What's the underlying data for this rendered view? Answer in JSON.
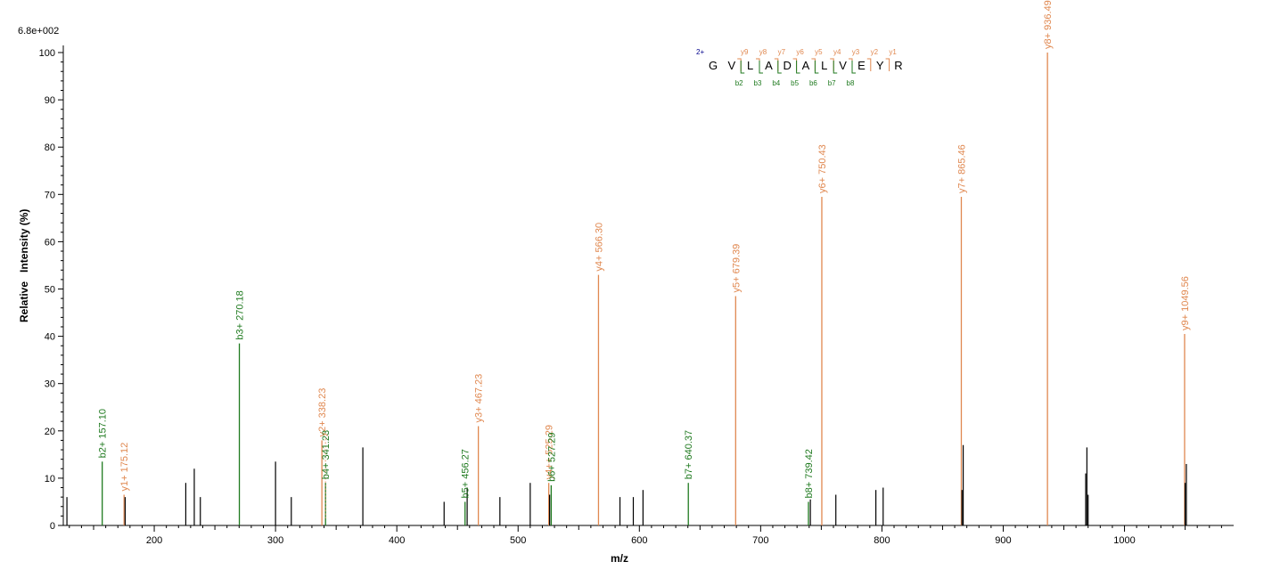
{
  "chart_data": {
    "type": "bar",
    "title": "",
    "scale_label": "6.8e+002",
    "xlabel": "m/z",
    "ylabel_parts": [
      "Relative",
      "Intensity (%)"
    ],
    "xlim": [
      125,
      1090
    ],
    "ylim": [
      0,
      100
    ],
    "x_ticks": [
      200,
      300,
      400,
      500,
      600,
      700,
      800,
      900,
      1000
    ],
    "y_ticks": [
      0,
      10,
      20,
      30,
      40,
      50,
      60,
      70,
      80,
      90,
      100
    ],
    "colors": {
      "b_ion": "#1f7a1f",
      "y_ion": "#e08850",
      "unlabeled": "#000000",
      "charge": "#00008b"
    },
    "peaks": [
      {
        "mz": 128,
        "intensity": 6
      },
      {
        "mz": 157.1,
        "intensity": 13.5,
        "ion": "b",
        "label": "b2+ 157.10"
      },
      {
        "mz": 175.12,
        "intensity": 6.5,
        "ion": "y",
        "label": "y1+ 175.12"
      },
      {
        "mz": 176,
        "intensity": 6
      },
      {
        "mz": 226,
        "intensity": 9
      },
      {
        "mz": 233,
        "intensity": 12
      },
      {
        "mz": 238,
        "intensity": 6
      },
      {
        "mz": 270.18,
        "intensity": 38.5,
        "ion": "b",
        "label": "b3+ 270.18"
      },
      {
        "mz": 300,
        "intensity": 13.5
      },
      {
        "mz": 313,
        "intensity": 6
      },
      {
        "mz": 338.23,
        "intensity": 18,
        "ion": "y",
        "label": "y2+ 338.23"
      },
      {
        "mz": 341.23,
        "intensity": 9,
        "ion": "b",
        "label": "b4+ 341.23"
      },
      {
        "mz": 372,
        "intensity": 16.5
      },
      {
        "mz": 439,
        "intensity": 5
      },
      {
        "mz": 456.27,
        "intensity": 5,
        "ion": "b",
        "label": "b5+ 456.27"
      },
      {
        "mz": 458,
        "intensity": 8
      },
      {
        "mz": 467.23,
        "intensity": 21,
        "ion": "y",
        "label": "y3+ 467.23"
      },
      {
        "mz": 485,
        "intensity": 6
      },
      {
        "mz": 510,
        "intensity": 9
      },
      {
        "mz": 525.29,
        "intensity": 9,
        "ion": "y",
        "label": "y4++ 525.29"
      },
      {
        "mz": 526,
        "intensity": 6.5
      },
      {
        "mz": 527.29,
        "intensity": 8.5,
        "ion": "b",
        "label": "b6+ 527.29"
      },
      {
        "mz": 566.3,
        "intensity": 53,
        "ion": "y",
        "label": "y4+ 566.30"
      },
      {
        "mz": 584,
        "intensity": 6
      },
      {
        "mz": 595,
        "intensity": 6
      },
      {
        "mz": 603,
        "intensity": 7.5
      },
      {
        "mz": 640.37,
        "intensity": 9,
        "ion": "b",
        "label": "b7+ 640.37"
      },
      {
        "mz": 679.39,
        "intensity": 48.5,
        "ion": "y",
        "label": "y5+ 679.39"
      },
      {
        "mz": 739.42,
        "intensity": 5,
        "ion": "b",
        "label": "b8+ 739.42"
      },
      {
        "mz": 741,
        "intensity": 5.5
      },
      {
        "mz": 750.43,
        "intensity": 69.5,
        "ion": "y",
        "label": "y6+ 750.43"
      },
      {
        "mz": 762,
        "intensity": 6.5
      },
      {
        "mz": 795,
        "intensity": 7.5
      },
      {
        "mz": 801,
        "intensity": 8
      },
      {
        "mz": 865.46,
        "intensity": 69.5,
        "ion": "y",
        "label": "y7+ 865.46"
      },
      {
        "mz": 866,
        "intensity": 7.5
      },
      {
        "mz": 867,
        "intensity": 17
      },
      {
        "mz": 936.49,
        "intensity": 100,
        "ion": "y",
        "label": "y8+ 936.49"
      },
      {
        "mz": 968,
        "intensity": 11
      },
      {
        "mz": 969,
        "intensity": 16.5
      },
      {
        "mz": 970,
        "intensity": 6.5
      },
      {
        "mz": 1049.56,
        "intensity": 40.5,
        "ion": "y",
        "label": "y9+ 1049.56"
      },
      {
        "mz": 1050,
        "intensity": 9
      },
      {
        "mz": 1051,
        "intensity": 13
      }
    ],
    "sequence": {
      "charge": "2+",
      "residues": [
        "G",
        "V",
        "L",
        "A",
        "D",
        "A",
        "L",
        "V",
        "E",
        "Y",
        "R"
      ],
      "y_ions": [
        "y9",
        "y8",
        "y7",
        "y6",
        "y5",
        "y4",
        "y3",
        "y2",
        "y1"
      ],
      "b_ions": [
        "b2",
        "b3",
        "b4",
        "b5",
        "b6",
        "b7",
        "b8"
      ]
    }
  }
}
